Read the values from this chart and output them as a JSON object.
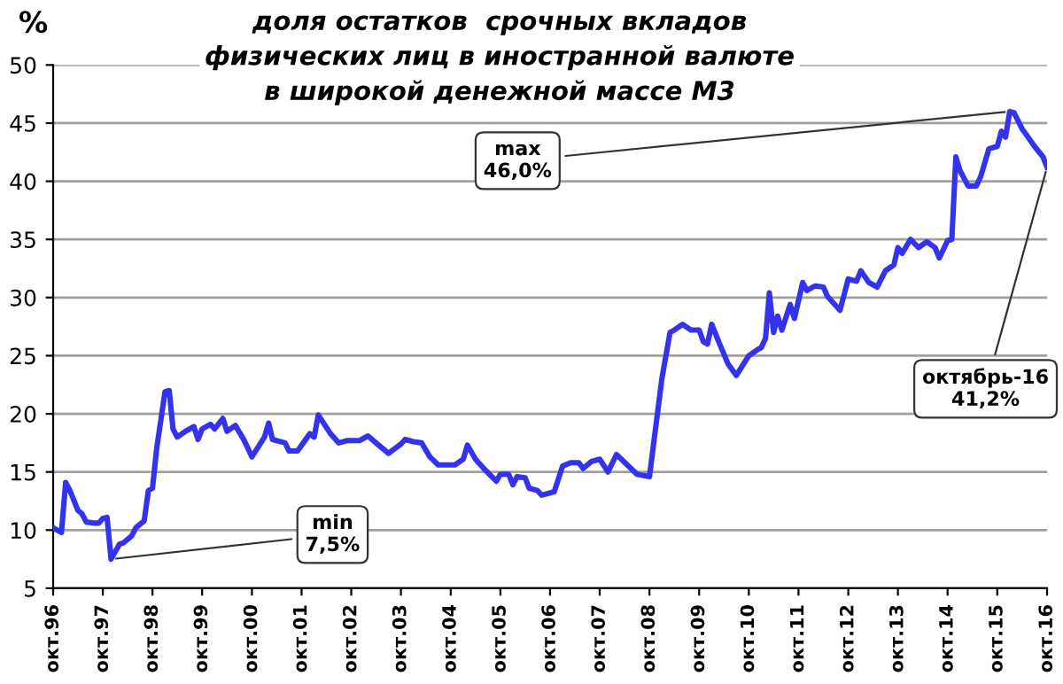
{
  "chart_data": {
    "type": "line",
    "title": "доля остатков  срочных вкладов\nфизических лиц в иностранной валюте\nв широкой денежной массе М3",
    "ylabel": "%",
    "x": [
      "1996-10",
      "1996-12",
      "1997-01",
      "1997-02",
      "1997-04",
      "1997-05",
      "1997-06",
      "1997-08",
      "1997-09",
      "1997-10",
      "1997-11",
      "1997-12",
      "1998-02",
      "1998-03",
      "1998-05",
      "1998-06",
      "1998-08",
      "1998-09",
      "1998-10",
      "1998-11",
      "1999-01",
      "1999-02",
      "1999-03",
      "1999-04",
      "1999-06",
      "1999-08",
      "1999-09",
      "1999-10",
      "1999-12",
      "2000-01",
      "2000-03",
      "2000-04",
      "2000-06",
      "2000-08",
      "2000-10",
      "2001-01",
      "2001-02",
      "2001-03",
      "2001-06",
      "2001-07",
      "2001-09",
      "2001-12",
      "2002-01",
      "2002-02",
      "2002-05",
      "2002-07",
      "2002-09",
      "2002-12",
      "2003-02",
      "2003-04",
      "2003-07",
      "2003-10",
      "2003-11",
      "2004-01",
      "2004-03",
      "2004-05",
      "2004-07",
      "2004-11",
      "2005-01",
      "2005-02",
      "2005-04",
      "2005-06",
      "2005-09",
      "2005-10",
      "2005-12",
      "2006-01",
      "2006-02",
      "2006-04",
      "2006-05",
      "2006-07",
      "2006-08",
      "2006-11",
      "2007-01",
      "2007-03",
      "2007-05",
      "2007-06",
      "2007-08",
      "2007-10",
      "2007-12",
      "2008-02",
      "2008-07",
      "2008-10",
      "2008-11",
      "2009-01",
      "2009-03",
      "2009-04",
      "2009-06",
      "2009-08",
      "2009-10",
      "2009-11",
      "2009-12",
      "2010-01",
      "2010-03",
      "2010-05",
      "2010-07",
      "2010-10",
      "2010-12",
      "2011-01",
      "2011-02",
      "2011-03",
      "2011-04",
      "2011-05",
      "2011-06",
      "2011-08",
      "2011-09",
      "2011-11",
      "2011-12",
      "2012-02",
      "2012-04",
      "2012-05",
      "2012-08",
      "2012-10",
      "2012-12",
      "2013-01",
      "2013-03",
      "2013-05",
      "2013-07",
      "2013-09",
      "2013-10",
      "2013-11",
      "2014-01",
      "2014-03",
      "2014-05",
      "2014-07",
      "2014-08",
      "2014-10",
      "2014-11",
      "2014-12",
      "2015-01",
      "2015-03",
      "2015-05",
      "2015-06",
      "2015-08",
      "2015-10",
      "2015-11",
      "2015-12",
      "2016-01",
      "2016-02",
      "2016-04",
      "2016-05",
      "2016-06",
      "2016-07",
      "2016-09",
      "2016-10"
    ],
    "series": [
      {
        "color": "#3333ee",
        "values": [
          10.2,
          9.8,
          14.1,
          13.4,
          11.7,
          11.4,
          10.7,
          10.6,
          10.6,
          11.0,
          11.1,
          7.5,
          8.8,
          8.9,
          9.5,
          10.2,
          10.8,
          13.4,
          13.6,
          17.0,
          21.9,
          22.0,
          18.7,
          18.0,
          18.5,
          18.9,
          17.8,
          18.7,
          19.1,
          18.7,
          19.6,
          18.5,
          19.0,
          17.8,
          16.3,
          18.0,
          19.2,
          17.8,
          17.5,
          16.8,
          16.8,
          18.3,
          18.0,
          19.9,
          18.3,
          17.5,
          17.7,
          17.7,
          18.1,
          17.5,
          16.6,
          17.4,
          17.8,
          17.6,
          17.5,
          16.3,
          15.6,
          15.6,
          16.1,
          17.3,
          16.1,
          15.3,
          14.2,
          14.8,
          14.8,
          13.9,
          14.6,
          14.5,
          13.6,
          13.4,
          13.0,
          13.3,
          15.5,
          15.8,
          15.8,
          15.3,
          15.9,
          16.1,
          15.0,
          16.5,
          14.8,
          14.6,
          17.5,
          23.1,
          27.0,
          27.2,
          27.7,
          27.2,
          27.2,
          26.2,
          26.0,
          27.7,
          26.0,
          24.3,
          23.3,
          25.0,
          25.5,
          25.7,
          26.5,
          30.4,
          27.0,
          28.4,
          27.2,
          29.4,
          28.2,
          31.3,
          30.6,
          31.0,
          30.9,
          30.1,
          28.9,
          31.6,
          31.4,
          32.3,
          31.3,
          30.9,
          32.3,
          32.8,
          34.3,
          33.8,
          35.0,
          34.3,
          34.8,
          34.3,
          33.4,
          34.9,
          35.0,
          42.1,
          40.9,
          39.6,
          39.6,
          40.4,
          42.8,
          43.0,
          44.3,
          43.8,
          46.0,
          45.9,
          44.5,
          44.0,
          43.5,
          43.0,
          42.1,
          41.2
        ]
      }
    ],
    "xlim": [
      "1996-10",
      "2016-10"
    ],
    "xticks": [
      {
        "value": "1996-10",
        "label": "окт.96"
      },
      {
        "value": "1997-10",
        "label": "окт.97"
      },
      {
        "value": "1998-10",
        "label": "окт.98"
      },
      {
        "value": "1999-10",
        "label": "окт.99"
      },
      {
        "value": "2000-10",
        "label": "окт.00"
      },
      {
        "value": "2001-10",
        "label": "окт.01"
      },
      {
        "value": "2002-10",
        "label": "окт.02"
      },
      {
        "value": "2003-10",
        "label": "окт.03"
      },
      {
        "value": "2004-10",
        "label": "окт.04"
      },
      {
        "value": "2005-10",
        "label": "окт.05"
      },
      {
        "value": "2006-10",
        "label": "окт.06"
      },
      {
        "value": "2007-10",
        "label": "окт.07"
      },
      {
        "value": "2008-10",
        "label": "окт.08"
      },
      {
        "value": "2009-10",
        "label": "окт.09"
      },
      {
        "value": "2010-10",
        "label": "окт.10"
      },
      {
        "value": "2011-10",
        "label": "окт.11"
      },
      {
        "value": "2012-10",
        "label": "окт.12"
      },
      {
        "value": "2013-10",
        "label": "окт.13"
      },
      {
        "value": "2014-10",
        "label": "окт.14"
      },
      {
        "value": "2015-10",
        "label": "окт.15"
      },
      {
        "value": "2016-10",
        "label": "окт.16"
      }
    ],
    "ylim": [
      5,
      50
    ],
    "yticks": [
      5,
      10,
      15,
      20,
      25,
      30,
      35,
      40,
      45,
      50
    ],
    "grid": "y",
    "legend": false,
    "marker": "none",
    "line_style": "solid",
    "annotations": [
      {
        "text": "min\n7,5%",
        "x": "1997-12",
        "y": 7.5
      },
      {
        "text": "max\n46,0%",
        "x": "2016-01",
        "y": 46.0
      },
      {
        "text": "октябрь-16\n41,2%",
        "x": "2016-10",
        "y": 41.2
      }
    ]
  }
}
